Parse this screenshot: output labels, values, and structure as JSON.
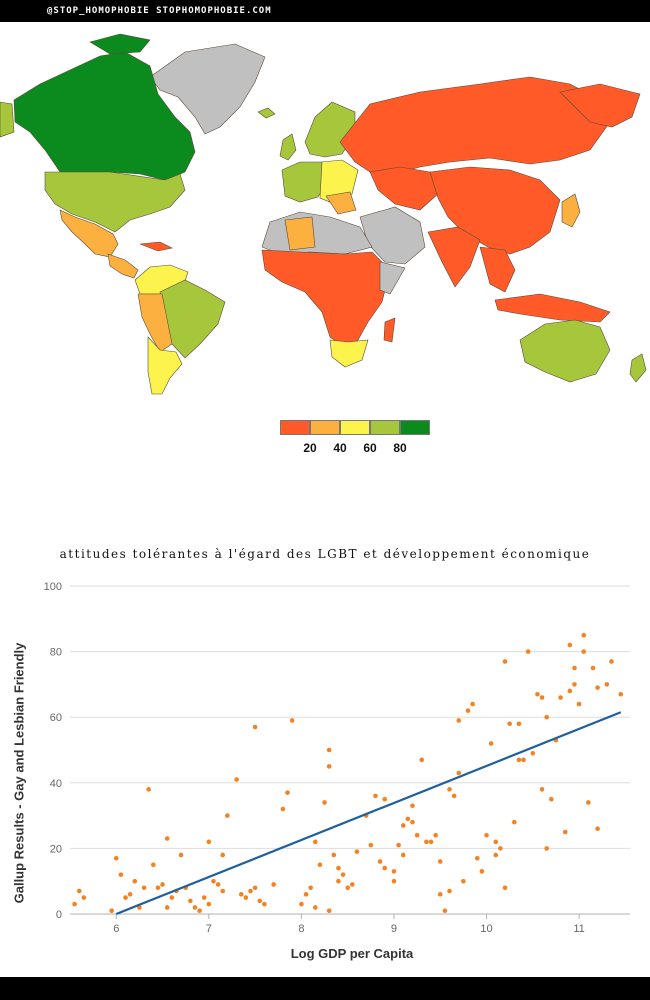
{
  "header": {
    "text": "@STOP_HOMOPHOBIE  STOPHOMOPHOBIE.COM"
  },
  "map": {
    "ocean_color": "#ffffff",
    "colors": {
      "very_low": "#ff5a28",
      "low": "#fcb040",
      "mid": "#fcf44c",
      "high": "#a6c73b",
      "very_high": "#0b8a1e",
      "no_data": "#c0c0c0"
    },
    "legend": {
      "colors": [
        "#ff5a28",
        "#fcb040",
        "#fcf44c",
        "#a6c73b",
        "#0b8a1e"
      ],
      "labels": [
        "20",
        "40",
        "60",
        "80"
      ]
    }
  },
  "chart_data": {
    "type": "scatter",
    "title": "attitudes tolérantes à l'égard des LGBT et développement économique",
    "xlabel": "Log GDP per Capita",
    "ylabel": "Gallup Results - Gay and Lesbian Friendly",
    "xlim": [
      5.5,
      11.55
    ],
    "ylim": [
      0,
      100
    ],
    "x_ticks": [
      6,
      7,
      8,
      9,
      10,
      11
    ],
    "y_ticks": [
      0,
      20,
      40,
      60,
      80,
      100
    ],
    "grid": "horizontal",
    "point_color": "#f58220",
    "line_color": "#1f5f9f",
    "trendline": {
      "x": [
        6.0,
        11.45
      ],
      "y": [
        0,
        61.5
      ]
    },
    "points": [
      [
        5.55,
        3
      ],
      [
        5.6,
        7
      ],
      [
        5.65,
        5
      ],
      [
        5.95,
        1
      ],
      [
        6.0,
        17
      ],
      [
        6.05,
        12
      ],
      [
        6.1,
        5
      ],
      [
        6.15,
        6
      ],
      [
        6.2,
        10
      ],
      [
        6.25,
        2
      ],
      [
        6.3,
        8
      ],
      [
        6.35,
        38
      ],
      [
        6.4,
        15
      ],
      [
        6.45,
        8
      ],
      [
        6.5,
        9
      ],
      [
        6.55,
        2
      ],
      [
        6.55,
        23
      ],
      [
        6.6,
        5
      ],
      [
        6.65,
        7
      ],
      [
        6.7,
        18
      ],
      [
        6.75,
        8
      ],
      [
        6.8,
        4
      ],
      [
        6.85,
        2
      ],
      [
        6.9,
        1
      ],
      [
        6.95,
        5
      ],
      [
        7.0,
        3
      ],
      [
        7.0,
        22
      ],
      [
        7.05,
        10
      ],
      [
        7.1,
        9
      ],
      [
        7.15,
        7
      ],
      [
        7.15,
        18
      ],
      [
        7.2,
        30
      ],
      [
        7.3,
        41
      ],
      [
        7.35,
        6
      ],
      [
        7.4,
        5
      ],
      [
        7.45,
        7
      ],
      [
        7.5,
        8
      ],
      [
        7.5,
        57
      ],
      [
        7.55,
        4
      ],
      [
        7.6,
        3
      ],
      [
        7.7,
        9
      ],
      [
        7.8,
        32
      ],
      [
        7.85,
        37
      ],
      [
        7.9,
        59
      ],
      [
        8.0,
        3
      ],
      [
        8.05,
        6
      ],
      [
        8.1,
        8
      ],
      [
        8.15,
        2
      ],
      [
        8.15,
        22
      ],
      [
        8.2,
        15
      ],
      [
        8.25,
        34
      ],
      [
        8.3,
        1
      ],
      [
        8.3,
        45
      ],
      [
        8.3,
        50
      ],
      [
        8.35,
        18
      ],
      [
        8.4,
        14
      ],
      [
        8.4,
        10
      ],
      [
        8.45,
        12
      ],
      [
        8.5,
        8
      ],
      [
        8.55,
        9
      ],
      [
        8.6,
        19
      ],
      [
        8.7,
        30
      ],
      [
        8.75,
        21
      ],
      [
        8.8,
        36
      ],
      [
        8.85,
        16
      ],
      [
        8.9,
        35
      ],
      [
        8.9,
        14
      ],
      [
        9.0,
        10
      ],
      [
        9.0,
        13
      ],
      [
        9.05,
        21
      ],
      [
        9.1,
        18
      ],
      [
        9.1,
        27
      ],
      [
        9.15,
        29
      ],
      [
        9.2,
        33
      ],
      [
        9.2,
        28
      ],
      [
        9.25,
        24
      ],
      [
        9.3,
        47
      ],
      [
        9.35,
        22
      ],
      [
        9.4,
        22
      ],
      [
        9.45,
        24
      ],
      [
        9.5,
        16
      ],
      [
        9.5,
        6
      ],
      [
        9.55,
        1
      ],
      [
        9.6,
        7
      ],
      [
        9.6,
        38
      ],
      [
        9.65,
        36
      ],
      [
        9.7,
        59
      ],
      [
        9.7,
        43
      ],
      [
        9.75,
        10
      ],
      [
        9.8,
        62
      ],
      [
        9.85,
        64
      ],
      [
        9.9,
        17
      ],
      [
        9.95,
        13
      ],
      [
        10.0,
        24
      ],
      [
        10.05,
        52
      ],
      [
        10.1,
        18
      ],
      [
        10.1,
        22
      ],
      [
        10.15,
        20
      ],
      [
        10.2,
        77
      ],
      [
        10.2,
        8
      ],
      [
        10.25,
        58
      ],
      [
        10.3,
        28
      ],
      [
        10.35,
        47
      ],
      [
        10.4,
        47
      ],
      [
        10.5,
        49
      ],
      [
        10.55,
        67
      ],
      [
        10.6,
        38
      ],
      [
        10.65,
        20
      ],
      [
        10.7,
        35
      ],
      [
        10.75,
        53
      ],
      [
        10.8,
        66
      ],
      [
        10.85,
        25
      ],
      [
        10.9,
        68
      ],
      [
        10.95,
        70
      ],
      [
        11.0,
        64
      ],
      [
        11.05,
        80
      ],
      [
        11.1,
        34
      ],
      [
        11.15,
        75
      ],
      [
        11.2,
        26
      ],
      [
        11.3,
        70
      ],
      [
        11.35,
        77
      ],
      [
        11.45,
        67
      ],
      [
        10.45,
        80
      ],
      [
        10.65,
        60
      ],
      [
        10.9,
        82
      ],
      [
        11.05,
        85
      ],
      [
        10.6,
        66
      ],
      [
        10.95,
        75
      ],
      [
        11.2,
        69
      ],
      [
        10.35,
        58
      ]
    ]
  }
}
